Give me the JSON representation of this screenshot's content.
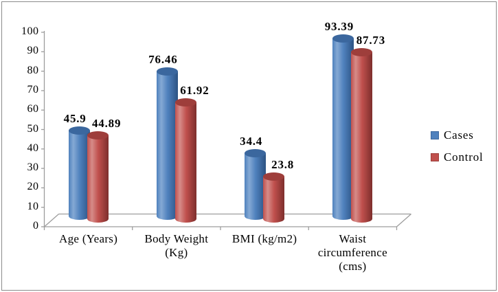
{
  "chart_data": {
    "type": "bar",
    "subtype": "3d-cylinder",
    "title": "",
    "xlabel": "",
    "ylabel": "",
    "categories": [
      "Age (Years)",
      "Body Weight (Kg)",
      "BMI (kg/m2)",
      "Waist circumference (cms)"
    ],
    "series": [
      {
        "name": "Cases",
        "values": [
          45.9,
          76.46,
          34.4,
          93.39
        ],
        "labels": [
          "45.9",
          "76.46",
          "34.4",
          "93.39"
        ],
        "color": "#4f81bd",
        "color_light": "#85a9d4",
        "color_dark": "#2c5282",
        "color_top": "#3b679e"
      },
      {
        "name": "Control",
        "values": [
          44.89,
          61.92,
          23.8,
          87.73
        ],
        "labels": [
          "44.89",
          "61.92",
          "23.8",
          "87.73"
        ],
        "color": "#c0504d",
        "color_light": "#d68c89",
        "color_dark": "#7d2e2c",
        "color_top": "#9e3e3b"
      }
    ],
    "ylim": [
      0,
      100
    ],
    "y_ticks": [
      0,
      10,
      20,
      30,
      40,
      50,
      60,
      70,
      80,
      90,
      100
    ],
    "grid": false,
    "legend_position": "right",
    "colors": {
      "background": "#ffffff",
      "frame_border": "#8a8a8a",
      "axis": "#9d9d9d",
      "text": "#000000"
    }
  }
}
